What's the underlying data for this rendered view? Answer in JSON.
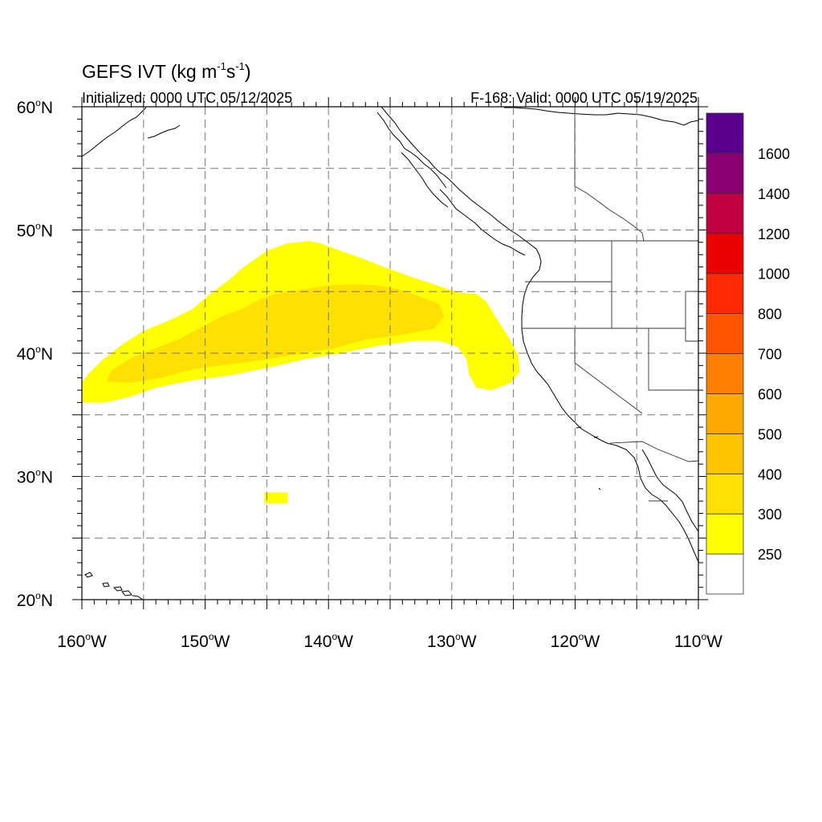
{
  "title": {
    "main": "GEFS IVT (kg m",
    "sup1": "-1",
    "mid": "s",
    "sup2": "-1",
    "close": ")"
  },
  "subtitle_left": "Initialized: 0000 UTC 05/12/2025",
  "subtitle_right": "F-168: Valid: 0000 UTC 05/19/2025",
  "map": {
    "lon_range": [
      -160,
      -110
    ],
    "lat_range": [
      20,
      60
    ],
    "grid": true,
    "lon_labels": [
      {
        "lon": -160,
        "text": "160",
        "hem": "W"
      },
      {
        "lon": -150,
        "text": "150",
        "hem": "W"
      },
      {
        "lon": -140,
        "text": "140",
        "hem": "W"
      },
      {
        "lon": -130,
        "text": "130",
        "hem": "W"
      },
      {
        "lon": -120,
        "text": "120",
        "hem": "W"
      },
      {
        "lon": -110,
        "text": "110",
        "hem": "W"
      }
    ],
    "lat_labels": [
      {
        "lat": 60,
        "text": "60",
        "hem": "N"
      },
      {
        "lat": 50,
        "text": "50",
        "hem": "N"
      },
      {
        "lat": 40,
        "text": "40",
        "hem": "N"
      },
      {
        "lat": 30,
        "text": "30",
        "hem": "N"
      },
      {
        "lat": 20,
        "text": "20",
        "hem": "N"
      }
    ]
  },
  "colorbar": {
    "labels": [
      "250",
      "300",
      "400",
      "500",
      "600",
      "700",
      "800",
      "1000",
      "1200",
      "1400",
      "1600"
    ],
    "colors": [
      "#ffffff",
      "#ffff00",
      "#ffe000",
      "#ffc400",
      "#ffaa00",
      "#ff8000",
      "#ff5500",
      "#ff2a00",
      "#ee0000",
      "#c00040",
      "#8a0070",
      "#5a0090"
    ]
  },
  "ivt_regions": [
    {
      "class": "250-300",
      "color": "#ffff00",
      "polygon": [
        [
          -160,
          36
        ],
        [
          -158,
          36
        ],
        [
          -156,
          36.5
        ],
        [
          -154,
          37.2
        ],
        [
          -151,
          37.8
        ],
        [
          -148,
          38.2
        ],
        [
          -145,
          38.8
        ],
        [
          -142,
          39.5
        ],
        [
          -139,
          40
        ],
        [
          -136,
          40.6
        ],
        [
          -133,
          41
        ],
        [
          -131,
          41
        ],
        [
          -129.5,
          40.5
        ],
        [
          -128.8,
          39.5
        ],
        [
          -128.6,
          38.3
        ],
        [
          -128,
          37.2
        ],
        [
          -126.8,
          37
        ],
        [
          -125.2,
          37.6
        ],
        [
          -124.5,
          38.5
        ],
        [
          -124.6,
          39.8
        ],
        [
          -125.4,
          41.3
        ],
        [
          -126.5,
          43
        ],
        [
          -127.2,
          44.2
        ],
        [
          -128,
          44.8
        ],
        [
          -129.3,
          44.9
        ],
        [
          -130.3,
          45.2
        ],
        [
          -131.8,
          45.7
        ],
        [
          -133.6,
          46.3
        ],
        [
          -135.5,
          47
        ],
        [
          -137.3,
          47.7
        ],
        [
          -139,
          48.3
        ],
        [
          -140.6,
          48.9
        ],
        [
          -141.6,
          49.1
        ],
        [
          -143.4,
          48.9
        ],
        [
          -145,
          48.3
        ],
        [
          -146,
          47.6
        ],
        [
          -147,
          46.9
        ],
        [
          -148,
          46
        ],
        [
          -149.6,
          44.8
        ],
        [
          -151,
          43.6
        ],
        [
          -152.6,
          42.8
        ],
        [
          -155,
          41.8
        ],
        [
          -156.6,
          40.8
        ],
        [
          -158.4,
          39.4
        ],
        [
          -159.5,
          38.3
        ],
        [
          -160,
          37.6
        ]
      ]
    },
    {
      "class": "300-400",
      "color": "#ffe000",
      "polygon": [
        [
          -158,
          37.7
        ],
        [
          -156,
          37.6
        ],
        [
          -153.6,
          38
        ],
        [
          -151,
          38.7
        ],
        [
          -148,
          39.1
        ],
        [
          -145,
          39.5
        ],
        [
          -142,
          40
        ],
        [
          -139.5,
          40.4
        ],
        [
          -137,
          41.1
        ],
        [
          -134,
          41.5
        ],
        [
          -131.4,
          42
        ],
        [
          -130.6,
          43
        ],
        [
          -131,
          44
        ],
        [
          -132.6,
          44.6
        ],
        [
          -134.3,
          45.2
        ],
        [
          -136,
          45.5
        ],
        [
          -138,
          45.6
        ],
        [
          -140,
          45.5
        ],
        [
          -142,
          45.2
        ],
        [
          -144,
          44.9
        ],
        [
          -145.5,
          44.4
        ],
        [
          -147,
          43.6
        ],
        [
          -148.6,
          43
        ],
        [
          -150.5,
          42
        ],
        [
          -152,
          41.2
        ],
        [
          -154,
          40.4
        ],
        [
          -156,
          39.6
        ],
        [
          -157.6,
          38.6
        ]
      ]
    },
    {
      "class": "250-300",
      "color": "#ffff00",
      "polygon": [
        [
          -145.2,
          27.8
        ],
        [
          -143.3,
          27.8
        ],
        [
          -143.3,
          28.7
        ],
        [
          -145.2,
          28.7
        ]
      ]
    }
  ]
}
